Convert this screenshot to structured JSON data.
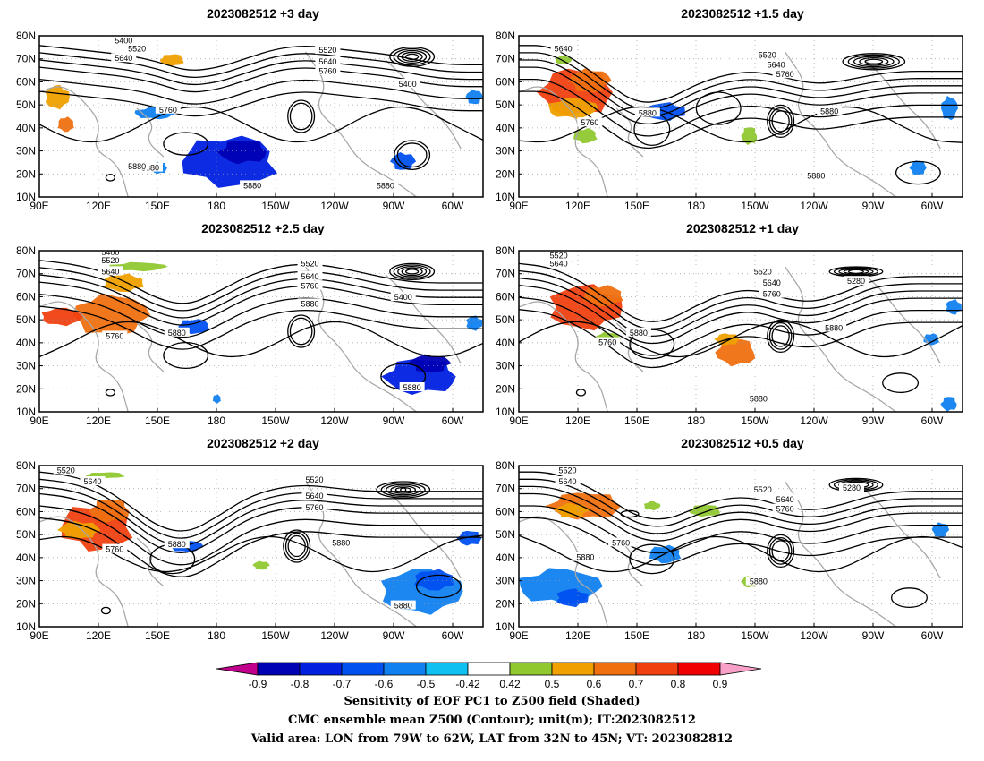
{
  "panels": [
    {
      "title": "2023082512  +3 day",
      "labels_5": [
        "5400",
        "5520",
        "5640",
        "5760",
        "5880",
        "5880",
        "5880",
        "5520",
        "5640",
        "5760",
        "5400",
        "5880"
      ]
    },
    {
      "title": "2023082512  +1.5 day",
      "labels_5": [
        "5640",
        "5760",
        "5880",
        "5520",
        "5640",
        "5760",
        "5880",
        "5880"
      ]
    },
    {
      "title": "2023082512  +2.5 day",
      "labels_5": [
        "5400",
        "5520",
        "5640",
        "5760",
        "5880",
        "5520",
        "5640",
        "5760",
        "5400",
        "5880",
        "5880"
      ]
    },
    {
      "title": "2023082512  +1 day",
      "labels_5": [
        "5520",
        "5640",
        "5760",
        "5880",
        "5520",
        "5640",
        "5760",
        "5280",
        "5880",
        "5880"
      ]
    },
    {
      "title": "2023082512  +2 day",
      "labels_5": [
        "5520",
        "5640",
        "5760",
        "5880",
        "5520",
        "5640",
        "5760",
        "5880",
        "5880"
      ]
    },
    {
      "title": "2023082512  +0.5 day",
      "labels_5": [
        "5520",
        "5640",
        "5760",
        "5880",
        "5520",
        "5640",
        "5760",
        "5280",
        "5880"
      ]
    }
  ],
  "lat_labels": [
    "80N",
    "70N",
    "60N",
    "50N",
    "40N",
    "30N",
    "20N",
    "10N"
  ],
  "lon_labels": [
    "90E",
    "120E",
    "150E",
    "180",
    "150W",
    "120W",
    "90W",
    "60W"
  ],
  "colorbar": {
    "ticks": [
      "-0.9",
      "-0.8",
      "-0.7",
      "-0.6",
      "-0.5",
      "-0.42",
      "0.42",
      "0.5",
      "0.6",
      "0.7",
      "0.8",
      "0.9"
    ],
    "colors": [
      "#c0008c",
      "#0000b4",
      "#0020e0",
      "#0050f0",
      "#1080f0",
      "#10c0f0",
      "#ffffff",
      "#90c830",
      "#f0a000",
      "#f07010",
      "#f04010",
      "#f00000",
      "#f8a0c8"
    ]
  },
  "captions": [
    "Sensitivity of EOF PC1 to Z500 field (Shaded)",
    "CMC ensemble mean Z500 (Contour); unit(m); IT:2023082512",
    "Valid area: LON from 79W to 62W, LAT from 32N to 45N; VT: 2023082812"
  ]
}
